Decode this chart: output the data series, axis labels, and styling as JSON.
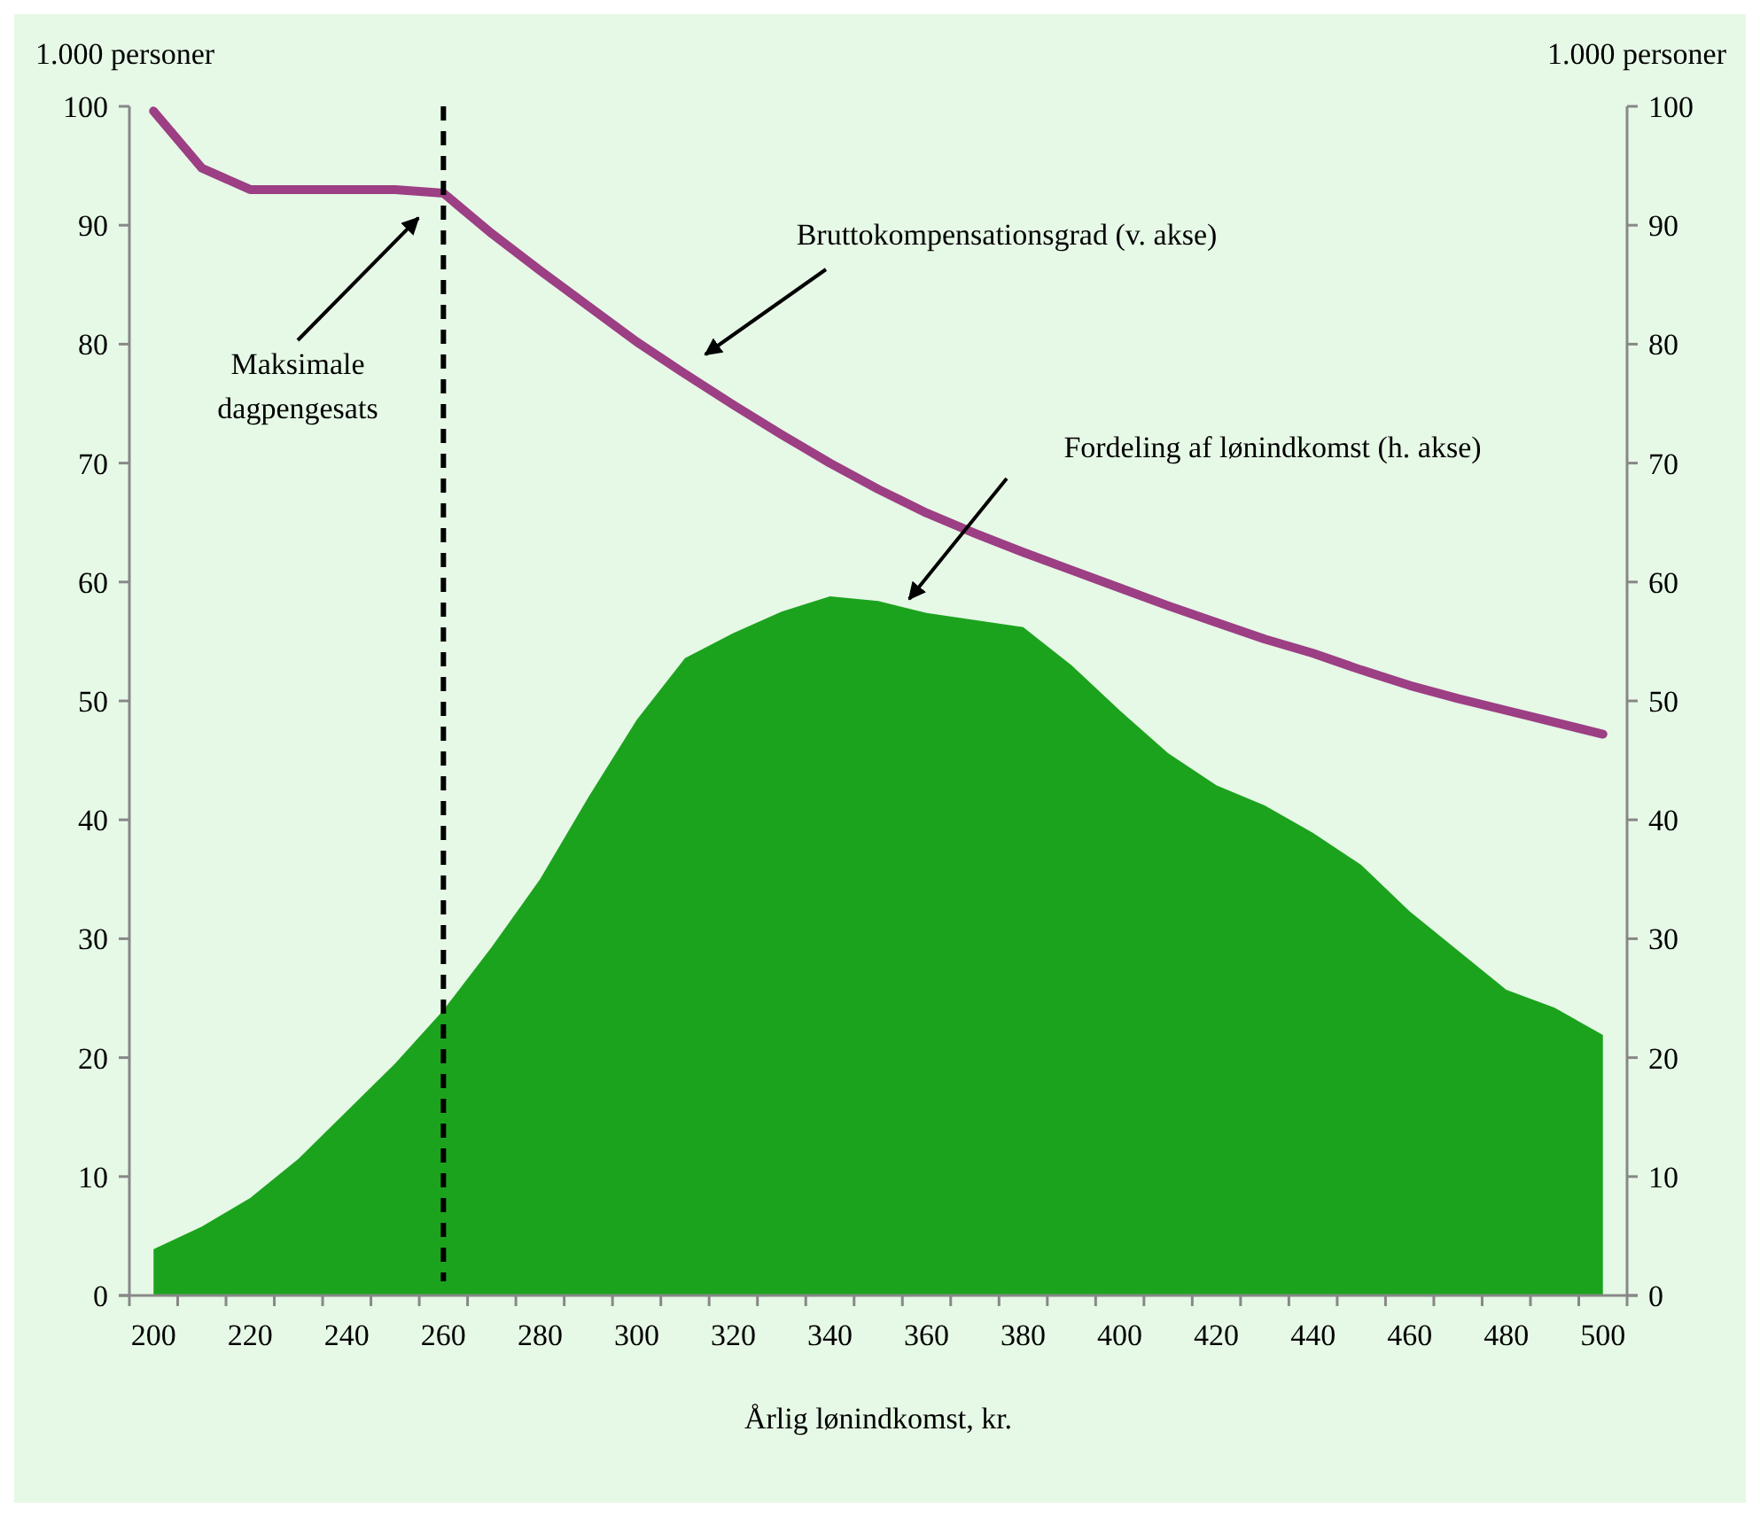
{
  "chart_data": {
    "type": "area",
    "xlabel": "Årlig lønindkomst, kr.",
    "ylabel": "1.000 personer",
    "y2label": "1.000 personer",
    "categories": [
      "200",
      null,
      "220",
      null,
      "240",
      null,
      "260",
      null,
      "280",
      null,
      "300",
      null,
      "320",
      null,
      "340",
      null,
      "360",
      null,
      "380",
      null,
      "400",
      null,
      "420",
      null,
      "440",
      null,
      "460",
      null,
      "480",
      null,
      "500"
    ],
    "series": [
      {
        "color": "#1ca31e",
        "values": [
          3.9,
          5.8,
          8.2,
          11.5,
          15.5,
          19.5,
          24.0,
          29.3,
          35.0,
          41.9,
          48.4,
          53.6,
          55.7,
          57.5,
          58.8,
          58.4,
          57.4,
          56.8,
          56.2,
          53.0,
          49.2,
          45.6,
          42.9,
          41.2,
          38.9,
          36.2,
          32.3,
          29.0,
          25.7,
          24.2,
          21.9
        ]
      },
      {
        "type": "line",
        "color": "#9c3f84",
        "values": [
          99.6,
          94.8,
          93.0,
          93.0,
          93.0,
          93.0,
          92.7,
          89.3,
          86.2,
          83.2,
          80.2,
          77.5,
          74.9,
          72.4,
          70.0,
          67.8,
          65.8,
          64.1,
          62.5,
          61.0,
          59.5,
          58.0,
          56.6,
          55.2,
          54.0,
          52.6,
          51.3,
          50.2,
          49.2,
          48.2,
          47.2
        ]
      }
    ],
    "ylim": [
      0,
      100
    ],
    "yticks": [
      0,
      10,
      20,
      30,
      40,
      50,
      60,
      70,
      80,
      90,
      100
    ],
    "y2lim": [
      0,
      100
    ],
    "y2ticks": [
      0,
      10,
      20,
      30,
      40,
      50,
      60,
      70,
      80,
      90,
      100
    ],
    "ref_lines": [
      {
        "axis": "x",
        "value": "260",
        "color": "#000000",
        "line_style": "dashed"
      }
    ],
    "annotations": [
      "Maksimale dagpengesats",
      "Bruttokompensationsgrad (v. akse)",
      "Fordeling af lønindkomst (h. akse)"
    ],
    "grid": false
  }
}
